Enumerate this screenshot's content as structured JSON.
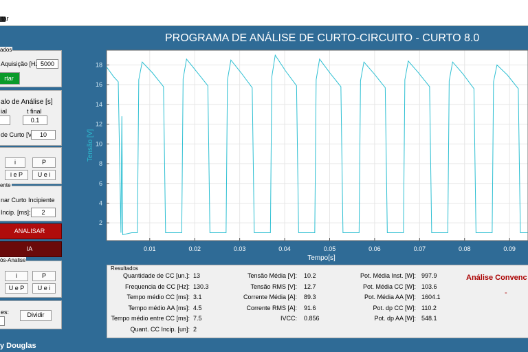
{
  "header": {
    "title": "PROGRAMA DE ANÁLISE DE CURTO-CIRCUITO - CURTO 8.0",
    "menu": "tar"
  },
  "panels": {
    "acquisition": {
      "title": "ados",
      "label": "Aquisição [Hz]:",
      "value": "5000",
      "button": "rtar"
    },
    "interval": {
      "title": "alo de Análise [s]",
      "t_start": "ial",
      "t_end": "t final",
      "t_end_value": "0.1",
      "threshold_label": "de Curto [V]:",
      "threshold_value": "10"
    },
    "plots": {
      "buttons": [
        "i",
        "P",
        "i e P",
        "U e i"
      ]
    },
    "incipient": {
      "title": "ente",
      "option": "nar Curto Incipiente",
      "label": "Incip. [ms]:",
      "value": "2"
    },
    "analyze": "ANALISAR",
    "ia": "IA",
    "post": {
      "title": "ós-Analise",
      "buttons": [
        "i",
        "P",
        "U e P",
        "U e i"
      ]
    },
    "divide": {
      "label": "es:",
      "button": "Dividir"
    }
  },
  "footer": "y Douglas",
  "results": {
    "title": "Resultados",
    "col1": [
      {
        "label": "Quantidade de CC [un.]:",
        "value": "13"
      },
      {
        "label": "Frequencia de CC [Hz]:",
        "value": "130.3"
      },
      {
        "label": "Tempo médio CC [ms]:",
        "value": "3.1"
      },
      {
        "label": "Tempo médio AA [ms]:",
        "value": "4.5"
      },
      {
        "label": "Tempo médio entre CC [ms]:",
        "value": "7.5"
      },
      {
        "label": "Quant. CC Incip. [un]:",
        "value": "2"
      }
    ],
    "col2": [
      {
        "label": "Tensão Média [V]:",
        "value": "10.2"
      },
      {
        "label": "Tensão RMS [V]:",
        "value": "12.7"
      },
      {
        "label": "Corrente Média [A]:",
        "value": "89.3"
      },
      {
        "label": "Corrente RMS [A]:",
        "value": "91.6"
      },
      {
        "label": "IVCC:",
        "value": "0.856"
      }
    ],
    "col3": [
      {
        "label": "Pot. Média Inst. [W]:",
        "value": "997.9"
      },
      {
        "label": "Pot. Média CC [W]:",
        "value": "103.6"
      },
      {
        "label": "Pot. Média AA [W]:",
        "value": "1604.1"
      },
      {
        "label": "Pot. dp CC [W]:",
        "value": "110.2"
      },
      {
        "label": "Pot. dp AA [W]:",
        "value": "548.1"
      }
    ],
    "method": "Análise Convenc",
    "method_value": "-"
  },
  "chart_data": {
    "type": "line",
    "xlabel": "Tempo[s]",
    "ylabel": "Tensão [V]",
    "color": "#2cbfd2",
    "grid": true,
    "xlim": [
      0.0004,
      0.0941
    ],
    "ylim": [
      0.2,
      19.5
    ],
    "xticks": [
      0.01,
      0.02,
      0.03,
      0.04,
      0.05,
      0.06,
      0.07,
      0.08,
      0.09
    ],
    "yticks": [
      2,
      4,
      6,
      8,
      10,
      12,
      14,
      16,
      18
    ],
    "x": [
      0.0004,
      0.002,
      0.003,
      0.0036,
      0.0038,
      0.004,
      0.006,
      0.00725,
      0.00756,
      0.00832,
      0.01061,
      0.01306,
      0.01352,
      0.01711,
      0.01742,
      0.01818,
      0.02047,
      0.02292,
      0.02338,
      0.02697,
      0.02728,
      0.02804,
      0.03033,
      0.03278,
      0.03324,
      0.03683,
      0.03714,
      0.0379,
      0.04019,
      0.04264,
      0.0431,
      0.04669,
      0.047,
      0.04776,
      0.05005,
      0.0525,
      0.05296,
      0.05655,
      0.05686,
      0.05762,
      0.05991,
      0.06236,
      0.06282,
      0.06641,
      0.06672,
      0.06748,
      0.06977,
      0.07222,
      0.07268,
      0.07627,
      0.07658,
      0.07734,
      0.07963,
      0.08208,
      0.08254,
      0.08613,
      0.08644,
      0.0872,
      0.08949,
      0.09194,
      0.0924,
      0.094
    ],
    "values": [
      17.8,
      16.8,
      16.3,
      1.0,
      12.8,
      0.8,
      1.0,
      1.0,
      16.5,
      18.3,
      17.2,
      15.8,
      1.0,
      1.0,
      16.6,
      18.6,
      17.3,
      15.9,
      1.0,
      1.0,
      16.5,
      18.5,
      17.2,
      15.7,
      1.0,
      1.0,
      16.8,
      19.0,
      17.4,
      15.9,
      1.0,
      1.0,
      16.5,
      18.6,
      17.2,
      15.8,
      1.0,
      1.0,
      16.4,
      18.3,
      17.1,
      15.7,
      1.0,
      1.0,
      16.5,
      18.4,
      17.2,
      15.8,
      1.0,
      1.0,
      16.4,
      18.3,
      17.1,
      15.6,
      1.0,
      1.0,
      16.3,
      18.0,
      17.0,
      15.6,
      1.0,
      1.0
    ]
  }
}
